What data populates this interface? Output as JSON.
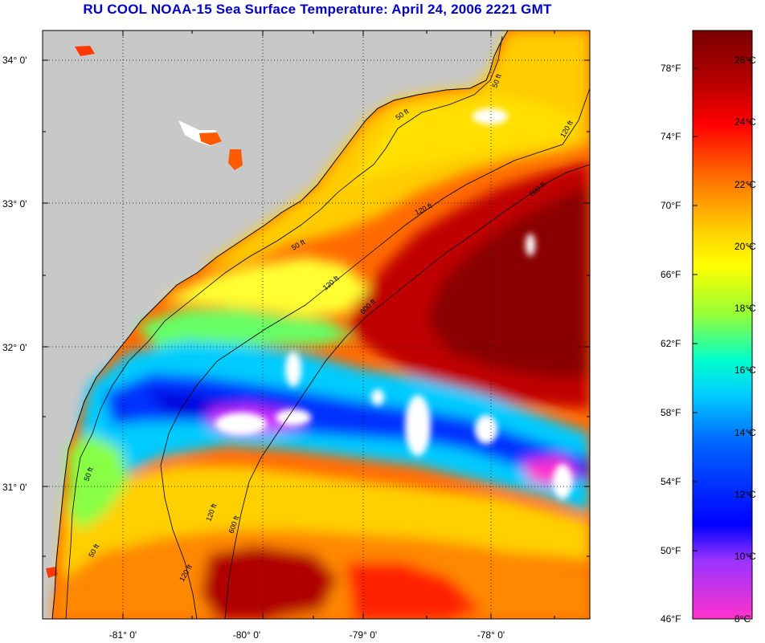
{
  "title": "RU COOL  NOAA-15  Sea Surface Temperature:  April 24, 2006 2221 GMT",
  "lat_labels": [
    "34° 0'",
    "33° 0'",
    "32° 0'",
    "31° 0'"
  ],
  "lon_labels": [
    "-81° 0'",
    "-80° 0'",
    "-79° 0'",
    "-78° 0'"
  ],
  "depth_labels": [
    "50 ft",
    "120 ft",
    "600 ft"
  ],
  "colorbar": {
    "fahrenheit": [
      "78°F",
      "74°F",
      "70°F",
      "66°F",
      "62°F",
      "58°F",
      "54°F",
      "50°F",
      "46°F"
    ],
    "celsius": [
      "26°C",
      "24°C",
      "22°C",
      "20°C",
      "18°C",
      "16°C",
      "14°C",
      "12°C",
      "10°C",
      "8°C"
    ],
    "stops": [
      "#7a0000",
      "#b00000",
      "#ff0000",
      "#ff7a00",
      "#ffd000",
      "#ffff00",
      "#99ff33",
      "#00ffcc",
      "#00ccff",
      "#0066ff",
      "#0000ff",
      "#9933ff",
      "#ff33cc"
    ]
  },
  "colors": {
    "land": "#c8c8c8",
    "cloud": "#ffffff",
    "coast": "#000000",
    "title": "#0000c8"
  }
}
